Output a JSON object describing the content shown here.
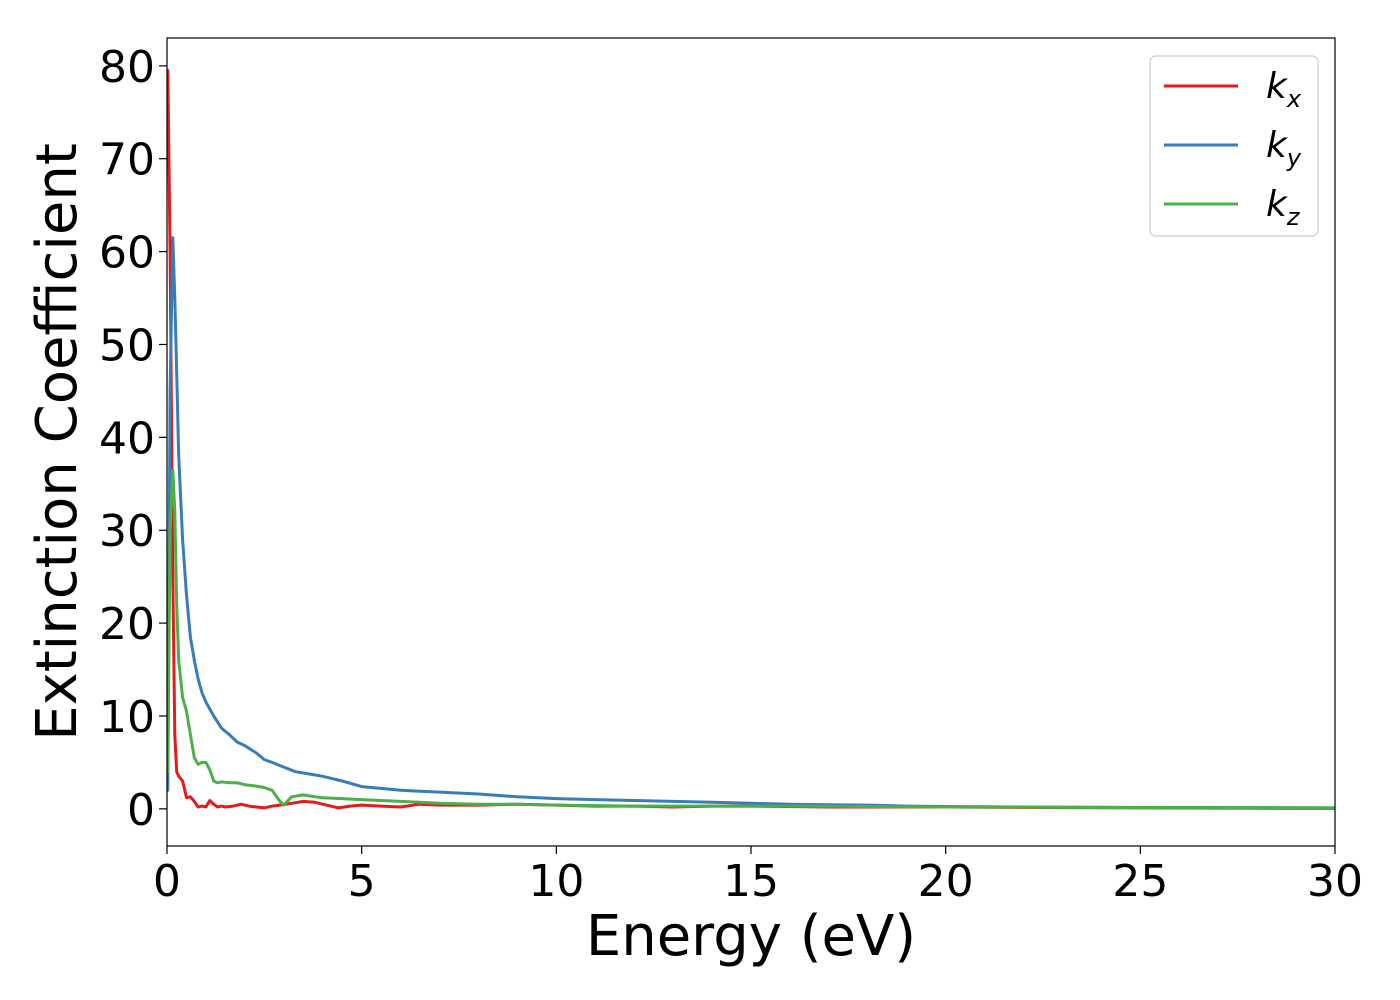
{
  "chart_data": {
    "type": "line",
    "title": "",
    "xlabel": "Energy (eV)",
    "ylabel": "Extinction Coefficient",
    "xlim": [
      0,
      30
    ],
    "ylim": [
      -4,
      83
    ],
    "xticks": [
      0,
      5,
      10,
      15,
      20,
      25,
      30
    ],
    "yticks": [
      0,
      10,
      20,
      30,
      40,
      50,
      60,
      70,
      80
    ],
    "grid": false,
    "legend_position": "top-right",
    "series": [
      {
        "name": "k",
        "subscript": "x",
        "color": "#e41a1c",
        "x": [
          0.02,
          0.08,
          0.15,
          0.2,
          0.25,
          0.3,
          0.4,
          0.5,
          0.6,
          0.7,
          0.8,
          0.9,
          1.0,
          1.1,
          1.2,
          1.3,
          1.4,
          1.5,
          1.7,
          1.9,
          2.1,
          2.3,
          2.5,
          2.7,
          2.9,
          3.2,
          3.5,
          3.8,
          4.1,
          4.4,
          4.7,
          5.0,
          5.5,
          6.0,
          6.5,
          7.0,
          8.0,
          9.0,
          10.0,
          11.0,
          12.0,
          13.0,
          14.0,
          15.0,
          17.0,
          20.0,
          25.0,
          30.0
        ],
        "y": [
          79.5,
          60.0,
          25.0,
          8.0,
          4.0,
          3.5,
          3.0,
          1.2,
          1.3,
          0.8,
          0.2,
          0.3,
          0.2,
          0.9,
          0.5,
          0.2,
          0.3,
          0.2,
          0.3,
          0.5,
          0.3,
          0.2,
          0.1,
          0.3,
          0.4,
          0.6,
          0.8,
          0.7,
          0.4,
          0.1,
          0.3,
          0.4,
          0.3,
          0.2,
          0.5,
          0.4,
          0.4,
          0.5,
          0.4,
          0.3,
          0.3,
          0.2,
          0.3,
          0.3,
          0.2,
          0.2,
          0.1,
          0.05
        ]
      },
      {
        "name": "k",
        "subscript": "y",
        "color": "#377eb8",
        "x": [
          0.02,
          0.08,
          0.15,
          0.2,
          0.25,
          0.3,
          0.4,
          0.5,
          0.6,
          0.7,
          0.8,
          0.9,
          1.0,
          1.2,
          1.4,
          1.6,
          1.8,
          2.0,
          2.3,
          2.5,
          2.7,
          3.0,
          3.3,
          3.6,
          4.0,
          4.5,
          5.0,
          5.5,
          6.0,
          6.5,
          7.0,
          8.0,
          9.0,
          10.0,
          11.0,
          12.0,
          13.0,
          14.0,
          15.0,
          16.0,
          17.0,
          18.0,
          19.0,
          20.0,
          22.0,
          25.0,
          30.0
        ],
        "y": [
          2.0,
          45.0,
          61.5,
          55.0,
          47.0,
          38.0,
          29.0,
          23.0,
          18.5,
          16.0,
          14.0,
          12.5,
          11.5,
          10.0,
          8.7,
          8.0,
          7.2,
          6.8,
          6.0,
          5.3,
          5.0,
          4.5,
          4.0,
          3.8,
          3.5,
          3.0,
          2.4,
          2.2,
          2.0,
          1.9,
          1.8,
          1.6,
          1.3,
          1.1,
          1.0,
          0.9,
          0.8,
          0.7,
          0.6,
          0.5,
          0.45,
          0.4,
          0.3,
          0.25,
          0.2,
          0.15,
          0.1
        ]
      },
      {
        "name": "k",
        "subscript": "z",
        "color": "#4daf4a",
        "x": [
          0.02,
          0.08,
          0.15,
          0.2,
          0.25,
          0.3,
          0.4,
          0.5,
          0.6,
          0.7,
          0.8,
          0.9,
          1.0,
          1.1,
          1.2,
          1.3,
          1.4,
          1.6,
          1.8,
          2.0,
          2.2,
          2.5,
          2.7,
          2.9,
          3.0,
          3.2,
          3.5,
          3.8,
          4.0,
          4.5,
          5.0,
          5.5,
          6.0,
          6.5,
          7.0,
          8.0,
          9.0,
          10.0,
          12.0,
          14.0,
          16.0,
          18.0,
          20.0,
          25.0,
          30.0
        ],
        "y": [
          4.0,
          30.0,
          36.5,
          32.0,
          22.0,
          16.0,
          12.0,
          10.5,
          8.0,
          5.5,
          4.8,
          5.0,
          5.0,
          4.2,
          3.0,
          2.8,
          2.9,
          2.8,
          2.8,
          2.6,
          2.5,
          2.3,
          2.0,
          0.8,
          0.4,
          1.3,
          1.5,
          1.3,
          1.2,
          1.1,
          1.0,
          0.9,
          0.8,
          0.7,
          0.6,
          0.5,
          0.5,
          0.4,
          0.3,
          0.3,
          0.3,
          0.25,
          0.2,
          0.15,
          0.1
        ]
      }
    ]
  }
}
